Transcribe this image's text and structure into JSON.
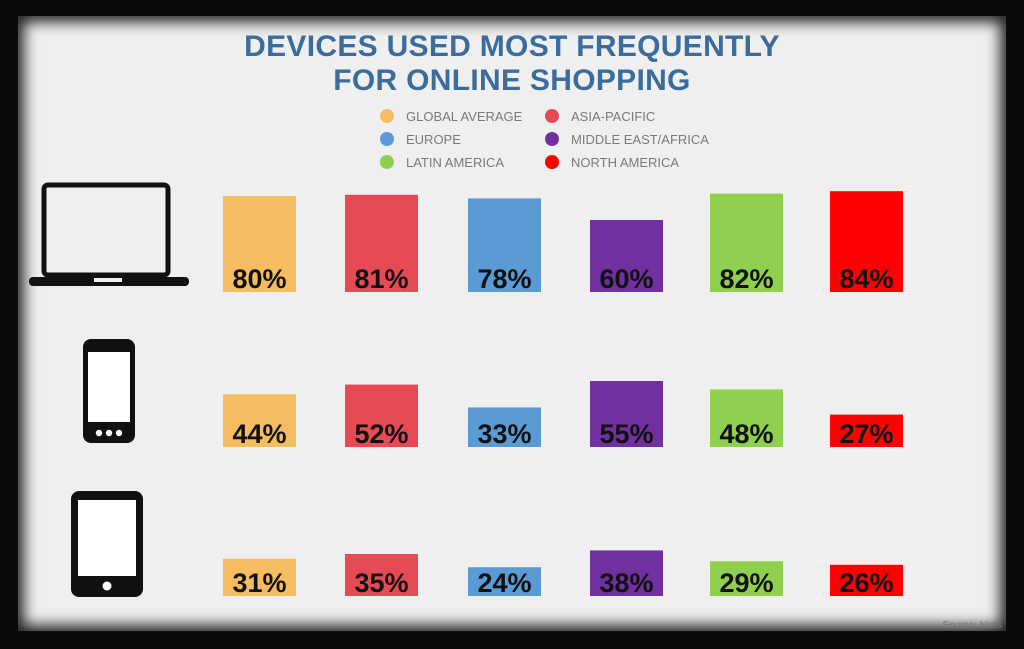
{
  "chart_data": {
    "type": "bar",
    "title_lines": [
      "DEVICES USED MOST FREQUENTLY",
      "FOR ONLINE SHOPPING"
    ],
    "legend": [
      {
        "name": "GLOBAL AVERAGE",
        "color": "#f5bd5f"
      },
      {
        "name": "ASIA-PACIFIC",
        "color": "#e64b55"
      },
      {
        "name": "EUROPE",
        "color": "#5b9bd5"
      },
      {
        "name": "MIDDLE EAST/AFRICA",
        "color": "#7030a0"
      },
      {
        "name": "LATIN AMERICA",
        "color": "#8fd14f"
      },
      {
        "name": "NORTH AMERICA",
        "color": "#ff0000"
      }
    ],
    "devices": [
      {
        "icon": "laptop-icon"
      },
      {
        "icon": "smartphone-icon"
      },
      {
        "icon": "tablet-icon"
      }
    ],
    "series": [
      {
        "name": "GLOBAL AVERAGE",
        "values": [
          80,
          44,
          31
        ],
        "labels": [
          "80%",
          "44%",
          "31%"
        ]
      },
      {
        "name": "ASIA-PACIFIC",
        "values": [
          81,
          52,
          35
        ],
        "labels": [
          "81%",
          "52%",
          "35%"
        ]
      },
      {
        "name": "EUROPE",
        "values": [
          78,
          33,
          24
        ],
        "labels": [
          "78%",
          "33%",
          "24%"
        ]
      },
      {
        "name": "MIDDLE EAST/AFRICA",
        "values": [
          60,
          55,
          38
        ],
        "labels": [
          "60%",
          "55%",
          "38%"
        ]
      },
      {
        "name": "LATIN AMERICA",
        "values": [
          82,
          48,
          29
        ],
        "labels": [
          "82%",
          "48%",
          "29%"
        ]
      },
      {
        "name": "NORTH AMERICA",
        "values": [
          84,
          27,
          26
        ],
        "labels": [
          "84%",
          "27%",
          "26%"
        ]
      }
    ]
  },
  "source": "Source: Niels"
}
